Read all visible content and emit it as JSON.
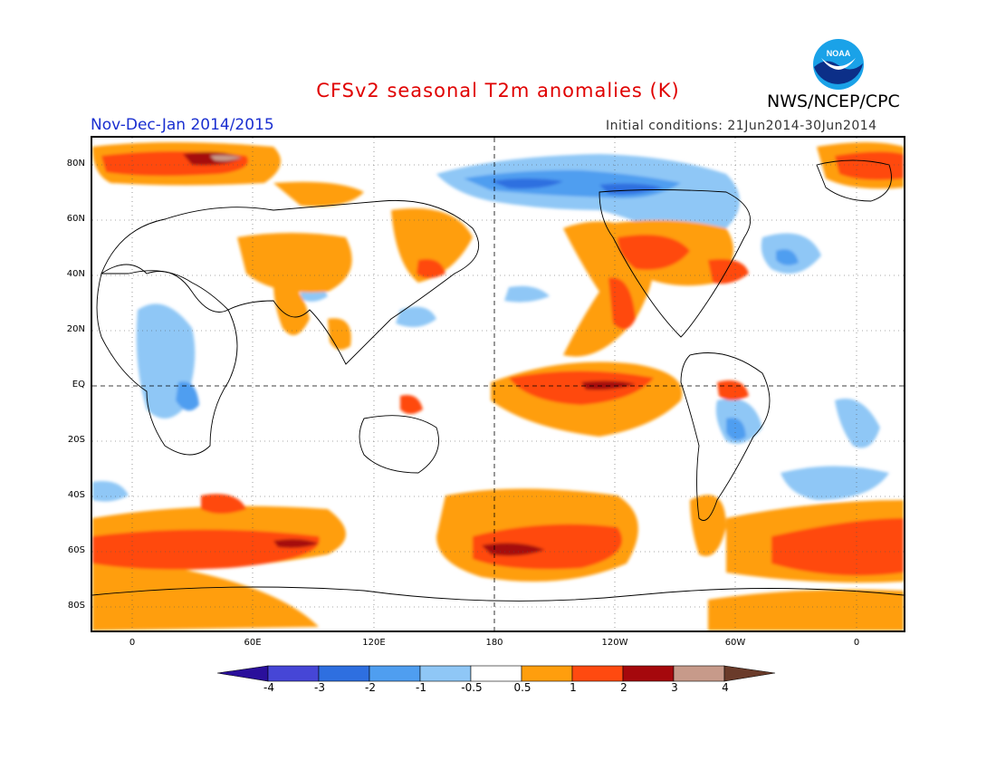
{
  "header": {
    "title": "CFSv2 seasonal T2m anomalies (K)",
    "agency": "NWS/NCEP/CPC",
    "logo_text": "NOAA",
    "season": "Nov-Dec-Jan 2014/2015",
    "initial_conditions": "Initial conditions: 21Jun2014-30Jun2014"
  },
  "map": {
    "lat_labels": [
      "80N",
      "60N",
      "40N",
      "20N",
      "EQ",
      "20S",
      "40S",
      "60S",
      "80S"
    ],
    "lon_labels": [
      "0",
      "60E",
      "120E",
      "180",
      "120W",
      "60W",
      "0"
    ]
  },
  "legend": {
    "labels": [
      "-4",
      "-3",
      "-2",
      "-1",
      "-0.5",
      "0.5",
      "1",
      "2",
      "3",
      "4"
    ],
    "colors": [
      "#2a0f9b",
      "#4646d6",
      "#2e6fe0",
      "#4f9ef0",
      "#8fc7f6",
      "#ffffff",
      "#ff9e0d",
      "#ff4a10",
      "#a5080c",
      "#c79a8a",
      "#6a3b2a"
    ]
  }
}
